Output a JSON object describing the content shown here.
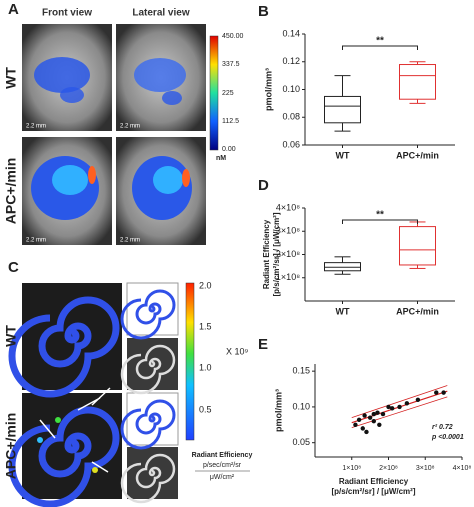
{
  "panels": {
    "A": {
      "label": "A",
      "columns": [
        "Front view",
        "Lateral view"
      ],
      "rows": [
        "WT",
        "APC+/min"
      ],
      "scale": "2.2 mm",
      "colorbar_ticks": [
        "450.00",
        "337.5",
        "225",
        "112.5",
        "0.00"
      ],
      "colorbar_unit": "nM"
    },
    "C": {
      "label": "C",
      "rows": [
        "WT",
        "APC+/min"
      ],
      "colorbar_ticks": [
        "2.0",
        "1.5",
        "1.0",
        "0.5"
      ],
      "multiplier": "X 10⁹",
      "legend_lines": [
        "Radiant Efficiency",
        "p/sec/cm²/sr",
        "μW/cm²"
      ]
    }
  },
  "chart_data": [
    {
      "type": "box",
      "panel": "B",
      "ylabel": "pmol/mm³",
      "categories": [
        "WT",
        "APC+/min"
      ],
      "colors": [
        "#222222",
        "#e03030"
      ],
      "boxes": [
        {
          "min": 0.07,
          "q1": 0.076,
          "median": 0.088,
          "q3": 0.095,
          "max": 0.11
        },
        {
          "min": 0.09,
          "q1": 0.093,
          "median": 0.11,
          "q3": 0.118,
          "max": 0.12
        }
      ],
      "significance": "**",
      "ylim": [
        0.06,
        0.14
      ],
      "yticks": [
        0.06,
        0.08,
        {
          "value": 0.1,
          "label": "0.10"
        },
        0.12,
        0.14
      ]
    },
    {
      "type": "box",
      "panel": "D",
      "ylabel": [
        "Radiant Efficiency",
        "[p/s/cm²/sr] / [μW/cm²]"
      ],
      "categories": [
        "WT",
        "APC+/min"
      ],
      "colors": [
        "#222222",
        "#e03030"
      ],
      "boxes": [
        {
          "min": 115000000,
          "q1": 130000000,
          "median": 145000000,
          "q3": 165000000,
          "max": 190000000
        },
        {
          "min": 140000000,
          "q1": 155000000,
          "median": 220000000,
          "q3": 320000000,
          "max": 340000000
        }
      ],
      "significance": "**",
      "ylim": [
        0,
        400000000
      ],
      "yticks": [
        {
          "value": 100000000,
          "label": "1×10⁸"
        },
        {
          "value": 200000000,
          "label": "2×10⁸"
        },
        {
          "value": 300000000,
          "label": "3×10⁸"
        },
        {
          "value": 400000000,
          "label": "4×10⁸"
        }
      ]
    },
    {
      "type": "scatter",
      "panel": "E",
      "ylabel": "pmol/mm³",
      "xlabel": [
        "Radiant Efficiency",
        "[p/s/cm²/sr] / [μW/cm²]"
      ],
      "color": "#111111",
      "line_color": "#d42020",
      "x": [
        110000000,
        120000000,
        130000000,
        135000000,
        140000000,
        150000000,
        160000000,
        160000000,
        170000000,
        175000000,
        185000000,
        200000000,
        210000000,
        230000000,
        250000000,
        280000000,
        330000000,
        350000000
      ],
      "y": [
        0.075,
        0.082,
        0.07,
        0.088,
        0.065,
        0.085,
        0.09,
        0.08,
        0.092,
        0.075,
        0.09,
        0.1,
        0.098,
        0.1,
        0.105,
        0.11,
        0.12,
        0.12
      ],
      "fit": {
        "x": [
          100000000,
          360000000
        ],
        "y": [
          0.078,
          0.122
        ]
      },
      "ci_upper": {
        "x": [
          100000000,
          360000000
        ],
        "y": [
          0.085,
          0.13
        ]
      },
      "ci_lower": {
        "x": [
          100000000,
          360000000
        ],
        "y": [
          0.071,
          0.114
        ]
      },
      "annotations": [
        "r² 0.72",
        "p <0.0001"
      ],
      "xlim": [
        0,
        400000000
      ],
      "xticks": [
        {
          "value": 100000000,
          "label": "1×10⁸"
        },
        {
          "value": 200000000,
          "label": "2×10⁸"
        },
        {
          "value": 300000000,
          "label": "3×10⁸"
        },
        {
          "value": 400000000,
          "label": "4×10⁸"
        }
      ],
      "ylim": [
        0.03,
        0.16
      ],
      "yticks": [
        0.05,
        {
          "value": 0.1,
          "label": "0.10"
        },
        0.15
      ]
    }
  ]
}
